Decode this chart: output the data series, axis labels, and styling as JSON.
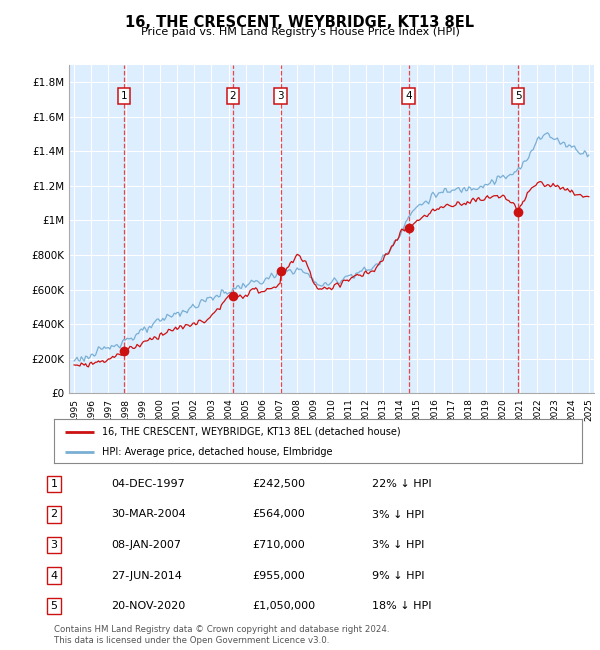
{
  "title": "16, THE CRESCENT, WEYBRIDGE, KT13 8EL",
  "subtitle": "Price paid vs. HM Land Registry's House Price Index (HPI)",
  "footer1": "Contains HM Land Registry data © Crown copyright and database right 2024.",
  "footer2": "This data is licensed under the Open Government Licence v3.0.",
  "legend_line1": "16, THE CRESCENT, WEYBRIDGE, KT13 8EL (detached house)",
  "legend_line2": "HPI: Average price, detached house, Elmbridge",
  "purchases": [
    {
      "num": 1,
      "date": "04-DEC-1997",
      "price": 242500,
      "hpi_diff": "22% ↓ HPI",
      "year": 1997.92
    },
    {
      "num": 2,
      "date": "30-MAR-2004",
      "price": 564000,
      "hpi_diff": "3% ↓ HPI",
      "year": 2004.25
    },
    {
      "num": 3,
      "date": "08-JAN-2007",
      "price": 710000,
      "hpi_diff": "3% ↓ HPI",
      "year": 2007.03
    },
    {
      "num": 4,
      "date": "27-JUN-2014",
      "price": 955000,
      "hpi_diff": "9% ↓ HPI",
      "year": 2014.49
    },
    {
      "num": 5,
      "date": "20-NOV-2020",
      "price": 1050000,
      "hpi_diff": "18% ↓ HPI",
      "year": 2020.88
    }
  ],
  "ylim": [
    0,
    1900000
  ],
  "xlim_start": 1994.7,
  "xlim_end": 2025.3,
  "yticks": [
    0,
    200000,
    400000,
    600000,
    800000,
    1000000,
    1200000,
    1400000,
    1600000,
    1800000
  ],
  "ytick_labels": [
    "£0",
    "£200K",
    "£400K",
    "£600K",
    "£800K",
    "£1M",
    "£1.2M",
    "£1.4M",
    "£1.6M",
    "£1.8M"
  ],
  "xticks": [
    1995,
    1996,
    1997,
    1998,
    1999,
    2000,
    2001,
    2002,
    2003,
    2004,
    2005,
    2006,
    2007,
    2008,
    2009,
    2010,
    2011,
    2012,
    2013,
    2014,
    2015,
    2016,
    2017,
    2018,
    2019,
    2020,
    2021,
    2022,
    2023,
    2024,
    2025
  ],
  "bg_color": "#ddeeff",
  "grid_color": "#ffffff",
  "hpi_line_color": "#7aafd4",
  "price_line_color": "#cc1111",
  "dashed_color": "#ee3333",
  "hpi_anchors_x": [
    1995.0,
    1995.5,
    1996.0,
    1996.5,
    1997.0,
    1997.5,
    1998.0,
    1998.5,
    1999.0,
    1999.5,
    2000.0,
    2000.5,
    2001.0,
    2001.5,
    2002.0,
    2002.5,
    2003.0,
    2003.5,
    2004.0,
    2004.5,
    2005.0,
    2005.5,
    2006.0,
    2006.5,
    2007.0,
    2007.5,
    2008.0,
    2008.5,
    2009.0,
    2009.5,
    2010.0,
    2010.5,
    2011.0,
    2011.5,
    2012.0,
    2012.5,
    2013.0,
    2013.5,
    2014.0,
    2014.5,
    2015.0,
    2015.5,
    2016.0,
    2016.5,
    2017.0,
    2017.5,
    2018.0,
    2018.5,
    2019.0,
    2019.5,
    2020.0,
    2020.5,
    2021.0,
    2021.5,
    2022.0,
    2022.5,
    2023.0,
    2023.5,
    2024.0,
    2024.5,
    2025.0
  ],
  "hpi_anchors_y": [
    195000,
    205000,
    215000,
    240000,
    265000,
    290000,
    310000,
    330000,
    355000,
    385000,
    415000,
    445000,
    465000,
    480000,
    500000,
    530000,
    555000,
    570000,
    590000,
    610000,
    630000,
    640000,
    650000,
    670000,
    690000,
    710000,
    720000,
    695000,
    650000,
    620000,
    640000,
    660000,
    680000,
    700000,
    710000,
    730000,
    780000,
    850000,
    930000,
    1020000,
    1080000,
    1110000,
    1150000,
    1160000,
    1170000,
    1180000,
    1190000,
    1200000,
    1210000,
    1230000,
    1250000,
    1260000,
    1300000,
    1370000,
    1480000,
    1500000,
    1470000,
    1450000,
    1430000,
    1400000,
    1390000
  ],
  "red_anchors_x": [
    1995.0,
    1995.5,
    1996.0,
    1996.5,
    1997.0,
    1997.5,
    1997.92,
    1998.0,
    1998.5,
    1999.0,
    1999.5,
    2000.0,
    2000.5,
    2001.0,
    2001.5,
    2002.0,
    2002.5,
    2003.0,
    2003.5,
    2004.0,
    2004.25,
    2004.5,
    2005.0,
    2005.5,
    2006.0,
    2006.5,
    2007.0,
    2007.03,
    2007.5,
    2008.0,
    2008.5,
    2009.0,
    2009.5,
    2010.0,
    2010.5,
    2011.0,
    2011.5,
    2012.0,
    2012.5,
    2013.0,
    2013.5,
    2014.0,
    2014.49,
    2014.5,
    2015.0,
    2015.5,
    2016.0,
    2016.5,
    2017.0,
    2017.5,
    2018.0,
    2018.5,
    2019.0,
    2019.5,
    2020.0,
    2020.88,
    2021.0,
    2021.5,
    2022.0,
    2022.5,
    2023.0,
    2023.5,
    2024.0,
    2024.5,
    2025.0
  ],
  "red_anchors_y": [
    160000,
    165000,
    172000,
    185000,
    200000,
    215000,
    242500,
    250000,
    270000,
    290000,
    315000,
    340000,
    360000,
    375000,
    385000,
    400000,
    420000,
    440000,
    500000,
    555000,
    564000,
    565000,
    575000,
    590000,
    595000,
    605000,
    620000,
    710000,
    730000,
    800000,
    770000,
    625000,
    590000,
    615000,
    640000,
    660000,
    680000,
    690000,
    705000,
    770000,
    845000,
    920000,
    955000,
    960000,
    1000000,
    1020000,
    1060000,
    1080000,
    1090000,
    1100000,
    1110000,
    1120000,
    1130000,
    1140000,
    1150000,
    1050000,
    1080000,
    1160000,
    1220000,
    1210000,
    1200000,
    1180000,
    1160000,
    1150000,
    1130000
  ]
}
